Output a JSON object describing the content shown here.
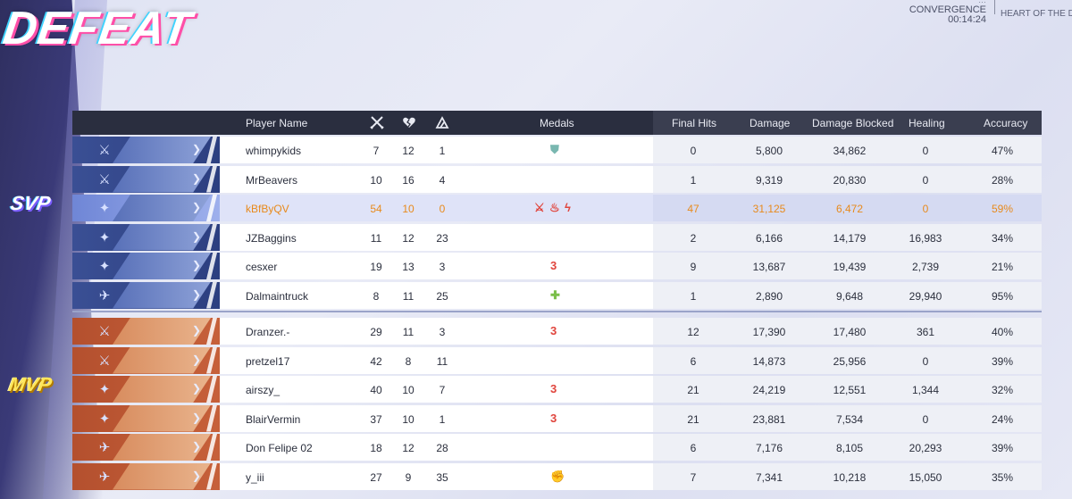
{
  "title": "DEFEAT",
  "match_info": {
    "top_line": "…",
    "mode": "CONVERGENCE",
    "time": "00:14:24",
    "map": "HEART OF THE DRAG",
    "map_top": "…"
  },
  "badges": {
    "svp": "SVP",
    "mvp": "MVP"
  },
  "columns": {
    "player_name": "Player Name",
    "kills_icon": "crossed-swords-icon",
    "deaths_icon": "broken-heart-icon",
    "assists_icon": "assist-icon",
    "medals": "Medals",
    "final_hits": "Final Hits",
    "damage": "Damage",
    "damage_blocked": "Damage Blocked",
    "healing": "Healing",
    "accuracy": "Accuracy"
  },
  "colors": {
    "blue_team": "#3a4f94",
    "red_team": "#b4502e",
    "highlight_text": "#e88a1c",
    "header_bg": "#2a2e3f"
  },
  "players": [
    {
      "team": "blue",
      "role": "vanguard",
      "name": "whimpykids",
      "k": "7",
      "d": "12",
      "a": "1",
      "medals": [
        {
          "icon": "shield-icon",
          "glyph": "⛊",
          "color": "#79b7b0"
        }
      ],
      "final_hits": "0",
      "damage": "5,800",
      "blocked": "34,862",
      "healing": "0",
      "accuracy": "47%"
    },
    {
      "team": "blue",
      "role": "vanguard",
      "name": "MrBeavers",
      "k": "10",
      "d": "16",
      "a": "4",
      "medals": [],
      "final_hits": "1",
      "damage": "9,319",
      "blocked": "20,830",
      "healing": "0",
      "accuracy": "28%"
    },
    {
      "team": "blue",
      "role": "duelist",
      "name": "kBfByQV",
      "k": "54",
      "d": "10",
      "a": "0",
      "me": true,
      "medals": [
        {
          "icon": "swords-medal-icon",
          "glyph": "⚔",
          "color": "#e0443c"
        },
        {
          "icon": "flame-medal-icon",
          "glyph": "♨",
          "color": "#e0443c"
        },
        {
          "icon": "bolt-medal-icon",
          "glyph": "ϟ",
          "color": "#e0443c"
        }
      ],
      "final_hits": "47",
      "damage": "31,125",
      "blocked": "6,472",
      "healing": "0",
      "accuracy": "59%"
    },
    {
      "team": "blue",
      "role": "duelist",
      "name": "JZBaggins",
      "k": "11",
      "d": "12",
      "a": "23",
      "medals": [],
      "final_hits": "2",
      "damage": "6,166",
      "blocked": "14,179",
      "healing": "16,983",
      "accuracy": "34%"
    },
    {
      "team": "blue",
      "role": "duelist",
      "name": "cesxer",
      "k": "19",
      "d": "13",
      "a": "3",
      "medals": [
        {
          "icon": "streak-3-medal-icon",
          "glyph": "3",
          "color": "#e0443c"
        }
      ],
      "final_hits": "9",
      "damage": "13,687",
      "blocked": "19,439",
      "healing": "2,739",
      "accuracy": "21%"
    },
    {
      "team": "blue",
      "role": "strategist",
      "name": "Dalmaintruck",
      "k": "8",
      "d": "11",
      "a": "25",
      "medals": [
        {
          "icon": "heal-cross-medal-icon",
          "glyph": "✚",
          "color": "#7bbf4a"
        }
      ],
      "final_hits": "1",
      "damage": "2,890",
      "blocked": "9,648",
      "healing": "29,940",
      "accuracy": "95%"
    },
    {
      "team": "red",
      "role": "vanguard",
      "name": "Dranzer.-",
      "k": "29",
      "d": "11",
      "a": "3",
      "medals": [
        {
          "icon": "streak-3-medal-icon",
          "glyph": "3",
          "color": "#e0443c"
        }
      ],
      "final_hits": "12",
      "damage": "17,390",
      "blocked": "17,480",
      "healing": "361",
      "accuracy": "40%"
    },
    {
      "team": "red",
      "role": "vanguard",
      "name": "pretzel17",
      "k": "42",
      "d": "8",
      "a": "11",
      "medals": [],
      "final_hits": "6",
      "damage": "14,873",
      "blocked": "25,956",
      "healing": "0",
      "accuracy": "39%"
    },
    {
      "team": "red",
      "role": "duelist",
      "name": "airszy_",
      "k": "40",
      "d": "10",
      "a": "7",
      "medals": [
        {
          "icon": "streak-3-medal-icon",
          "glyph": "3",
          "color": "#e0443c"
        }
      ],
      "final_hits": "21",
      "damage": "24,219",
      "blocked": "12,551",
      "healing": "1,344",
      "accuracy": "32%"
    },
    {
      "team": "red",
      "role": "duelist",
      "name": "BlairVermin",
      "k": "37",
      "d": "10",
      "a": "1",
      "medals": [
        {
          "icon": "streak-3-medal-icon",
          "glyph": "3",
          "color": "#e0443c"
        }
      ],
      "final_hits": "21",
      "damage": "23,881",
      "blocked": "7,534",
      "healing": "0",
      "accuracy": "24%"
    },
    {
      "team": "red",
      "role": "strategist",
      "name": "Don Felipe 02",
      "k": "18",
      "d": "12",
      "a": "28",
      "medals": [],
      "final_hits": "6",
      "damage": "7,176",
      "blocked": "8,105",
      "healing": "20,293",
      "accuracy": "39%"
    },
    {
      "team": "red",
      "role": "strategist",
      "name": "y_iii",
      "k": "27",
      "d": "9",
      "a": "35",
      "medals": [
        {
          "icon": "fist-medal-icon",
          "glyph": "✊",
          "color": "#c9a640"
        }
      ],
      "final_hits": "7",
      "damage": "7,341",
      "blocked": "10,218",
      "healing": "15,050",
      "accuracy": "35%"
    }
  ]
}
